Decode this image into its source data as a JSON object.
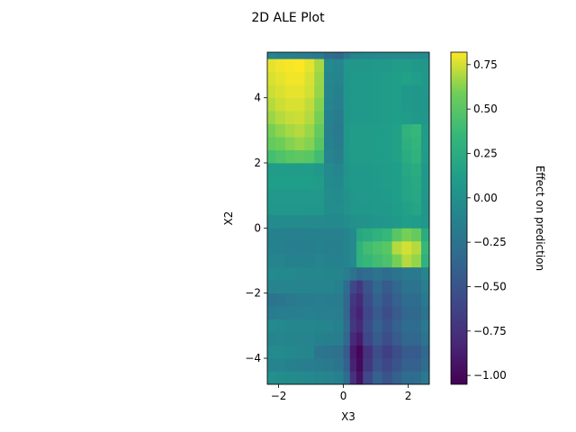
{
  "chart_data": {
    "type": "heatmap",
    "title": "2D ALE Plot",
    "xlabel": "X3",
    "ylabel": "X2",
    "colorbar_label": "Effect on prediction",
    "colormap": "viridis",
    "xlim": [
      -2.35,
      2.65
    ],
    "ylim": [
      -4.8,
      5.4
    ],
    "x_ticks": [
      -2,
      0,
      2
    ],
    "x_tick_labels": [
      "−2",
      "0",
      "2"
    ],
    "y_ticks": [
      -4,
      -2,
      0,
      2,
      4
    ],
    "y_tick_labels": [
      "−4",
      "−2",
      "0",
      "2",
      "4"
    ],
    "clim": [
      -1.05,
      0.82
    ],
    "colorbar_ticks": [
      0.75,
      0.5,
      0.25,
      0.0,
      -0.25,
      -0.5,
      -0.75,
      -1.0
    ],
    "colorbar_tick_labels": [
      "0.75",
      "0.50",
      "0.25",
      "0.00",
      "−0.25",
      "−0.50",
      "−0.75",
      "−1.00"
    ],
    "x_edges": [
      -2.35,
      -2.1,
      -1.8,
      -1.5,
      -1.2,
      -0.9,
      -0.6,
      -0.3,
      0.0,
      0.2,
      0.4,
      0.6,
      0.9,
      1.2,
      1.5,
      1.8,
      2.1,
      2.4,
      2.65
    ],
    "y_edges": [
      -4.8,
      -4.4,
      -4.0,
      -3.6,
      -3.2,
      -2.8,
      -2.4,
      -2.0,
      -1.6,
      -1.2,
      -0.8,
      -0.4,
      0.0,
      0.4,
      0.8,
      1.2,
      1.6,
      2.0,
      2.4,
      2.8,
      3.2,
      3.6,
      4.0,
      4.4,
      4.8,
      5.2,
      5.4
    ],
    "values": [
      [
        0.0,
        -0.02,
        -0.04,
        -0.05,
        -0.06,
        -0.08,
        -0.1,
        -0.12,
        -0.3,
        -0.75,
        -0.95,
        -0.6,
        -0.4,
        -0.5,
        -0.4,
        -0.3,
        -0.3,
        -0.2
      ],
      [
        -0.1,
        -0.1,
        -0.12,
        -0.14,
        -0.15,
        -0.18,
        -0.2,
        -0.22,
        -0.4,
        -0.85,
        -1.0,
        -0.7,
        -0.5,
        -0.6,
        -0.5,
        -0.4,
        -0.4,
        -0.3
      ],
      [
        -0.05,
        -0.05,
        -0.06,
        -0.08,
        -0.09,
        -0.22,
        -0.25,
        -0.28,
        -0.45,
        -0.9,
        -1.02,
        -0.75,
        -0.55,
        -0.65,
        -0.55,
        -0.45,
        -0.45,
        -0.35
      ],
      [
        -0.1,
        -0.08,
        -0.09,
        -0.1,
        -0.1,
        -0.12,
        -0.14,
        -0.16,
        -0.35,
        -0.8,
        -0.9,
        -0.6,
        -0.45,
        -0.55,
        -0.45,
        -0.35,
        -0.35,
        -0.25
      ],
      [
        -0.05,
        -0.06,
        -0.07,
        -0.08,
        -0.08,
        -0.09,
        -0.1,
        -0.12,
        -0.3,
        -0.7,
        -0.8,
        -0.55,
        -0.4,
        -0.5,
        -0.4,
        -0.3,
        -0.3,
        -0.2
      ],
      [
        -0.18,
        -0.16,
        -0.15,
        -0.14,
        -0.13,
        -0.14,
        -0.15,
        -0.16,
        -0.35,
        -0.75,
        -0.85,
        -0.6,
        -0.45,
        -0.55,
        -0.45,
        -0.35,
        -0.35,
        -0.25
      ],
      [
        -0.25,
        -0.22,
        -0.2,
        -0.18,
        -0.17,
        -0.16,
        -0.17,
        -0.18,
        -0.35,
        -0.7,
        -0.8,
        -0.55,
        -0.4,
        -0.5,
        -0.4,
        -0.3,
        -0.3,
        -0.2
      ],
      [
        -0.1,
        -0.1,
        -0.1,
        -0.1,
        -0.1,
        -0.1,
        -0.1,
        -0.12,
        -0.3,
        -0.6,
        -0.7,
        -0.5,
        -0.35,
        -0.45,
        -0.35,
        -0.25,
        -0.25,
        -0.15
      ],
      [
        -0.05,
        -0.06,
        -0.06,
        -0.07,
        -0.08,
        -0.08,
        -0.09,
        -0.1,
        -0.15,
        -0.25,
        -0.35,
        -0.3,
        -0.25,
        -0.3,
        -0.25,
        -0.2,
        -0.2,
        -0.1
      ],
      [
        -0.1,
        -0.1,
        -0.12,
        -0.12,
        -0.12,
        -0.1,
        -0.12,
        -0.12,
        -0.1,
        -0.05,
        0.3,
        0.35,
        0.4,
        0.45,
        0.6,
        0.7,
        0.65,
        0.3
      ],
      [
        -0.12,
        -0.12,
        -0.14,
        -0.14,
        -0.14,
        -0.12,
        -0.14,
        -0.14,
        -0.1,
        -0.05,
        0.3,
        0.4,
        0.45,
        0.5,
        0.7,
        0.75,
        0.7,
        0.35
      ],
      [
        -0.12,
        -0.12,
        -0.13,
        -0.13,
        -0.13,
        -0.12,
        -0.13,
        -0.13,
        -0.1,
        -0.05,
        0.2,
        0.25,
        0.3,
        0.35,
        0.5,
        0.6,
        0.55,
        0.25
      ],
      [
        -0.05,
        -0.04,
        -0.04,
        -0.04,
        -0.05,
        -0.05,
        -0.06,
        -0.06,
        -0.02,
        0.0,
        0.02,
        0.03,
        0.04,
        0.05,
        0.08,
        0.12,
        0.1,
        0.05
      ],
      [
        0.05,
        0.05,
        0.05,
        0.05,
        0.05,
        0.05,
        -0.02,
        -0.03,
        0.02,
        0.05,
        0.06,
        0.06,
        0.07,
        0.08,
        0.1,
        0.15,
        0.18,
        0.05
      ],
      [
        0.08,
        0.08,
        0.08,
        0.08,
        0.08,
        0.07,
        -0.03,
        -0.05,
        0.03,
        0.06,
        0.07,
        0.07,
        0.08,
        0.09,
        0.12,
        0.18,
        0.2,
        0.06
      ],
      [
        0.12,
        0.12,
        0.12,
        0.12,
        0.12,
        0.1,
        -0.04,
        -0.06,
        0.04,
        0.08,
        0.08,
        0.08,
        0.09,
        0.1,
        0.12,
        0.18,
        0.22,
        0.08
      ],
      [
        0.1,
        0.1,
        0.1,
        0.1,
        0.1,
        0.08,
        -0.05,
        -0.08,
        0.03,
        0.08,
        0.08,
        0.08,
        0.09,
        0.1,
        0.12,
        0.2,
        0.25,
        0.08
      ],
      [
        0.42,
        0.46,
        0.5,
        0.52,
        0.5,
        0.4,
        -0.1,
        -0.15,
        0.05,
        0.1,
        0.1,
        0.1,
        0.11,
        0.12,
        0.15,
        0.25,
        0.3,
        0.1
      ],
      [
        0.55,
        0.58,
        0.62,
        0.65,
        0.62,
        0.5,
        -0.12,
        -0.18,
        0.06,
        0.1,
        0.1,
        0.1,
        0.11,
        0.12,
        0.15,
        0.28,
        0.32,
        0.1
      ],
      [
        0.6,
        0.64,
        0.68,
        0.7,
        0.66,
        0.55,
        -0.13,
        -0.2,
        0.06,
        0.1,
        0.1,
        0.1,
        0.11,
        0.12,
        0.15,
        0.3,
        0.35,
        0.1
      ],
      [
        0.66,
        0.7,
        0.73,
        0.74,
        0.7,
        0.6,
        -0.12,
        -0.18,
        0.05,
        0.08,
        0.08,
        0.08,
        0.09,
        0.1,
        0.12,
        0.1,
        0.08,
        0.05
      ],
      [
        0.7,
        0.74,
        0.76,
        0.76,
        0.72,
        0.62,
        -0.1,
        -0.15,
        0.05,
        0.08,
        0.08,
        0.08,
        0.09,
        0.1,
        0.12,
        0.08,
        0.06,
        0.05
      ],
      [
        0.74,
        0.76,
        0.78,
        0.78,
        0.75,
        0.65,
        -0.08,
        -0.12,
        0.05,
        0.08,
        0.08,
        0.08,
        0.09,
        0.1,
        0.12,
        0.08,
        0.06,
        0.05
      ],
      [
        0.76,
        0.78,
        0.8,
        0.8,
        0.76,
        0.66,
        -0.07,
        -0.1,
        0.05,
        0.08,
        0.08,
        0.08,
        0.09,
        0.1,
        0.12,
        0.15,
        0.12,
        0.08
      ],
      [
        0.78,
        0.8,
        0.81,
        0.82,
        0.78,
        0.68,
        -0.05,
        -0.08,
        0.05,
        0.06,
        0.06,
        0.06,
        0.07,
        0.08,
        0.1,
        0.1,
        0.08,
        0.06
      ],
      [
        -0.1,
        -0.12,
        -0.14,
        -0.16,
        -0.18,
        -0.2,
        -0.3,
        -0.35,
        -0.2,
        -0.1,
        -0.08,
        -0.06,
        -0.05,
        -0.05,
        -0.05,
        -0.05,
        -0.05,
        -0.05
      ]
    ]
  }
}
